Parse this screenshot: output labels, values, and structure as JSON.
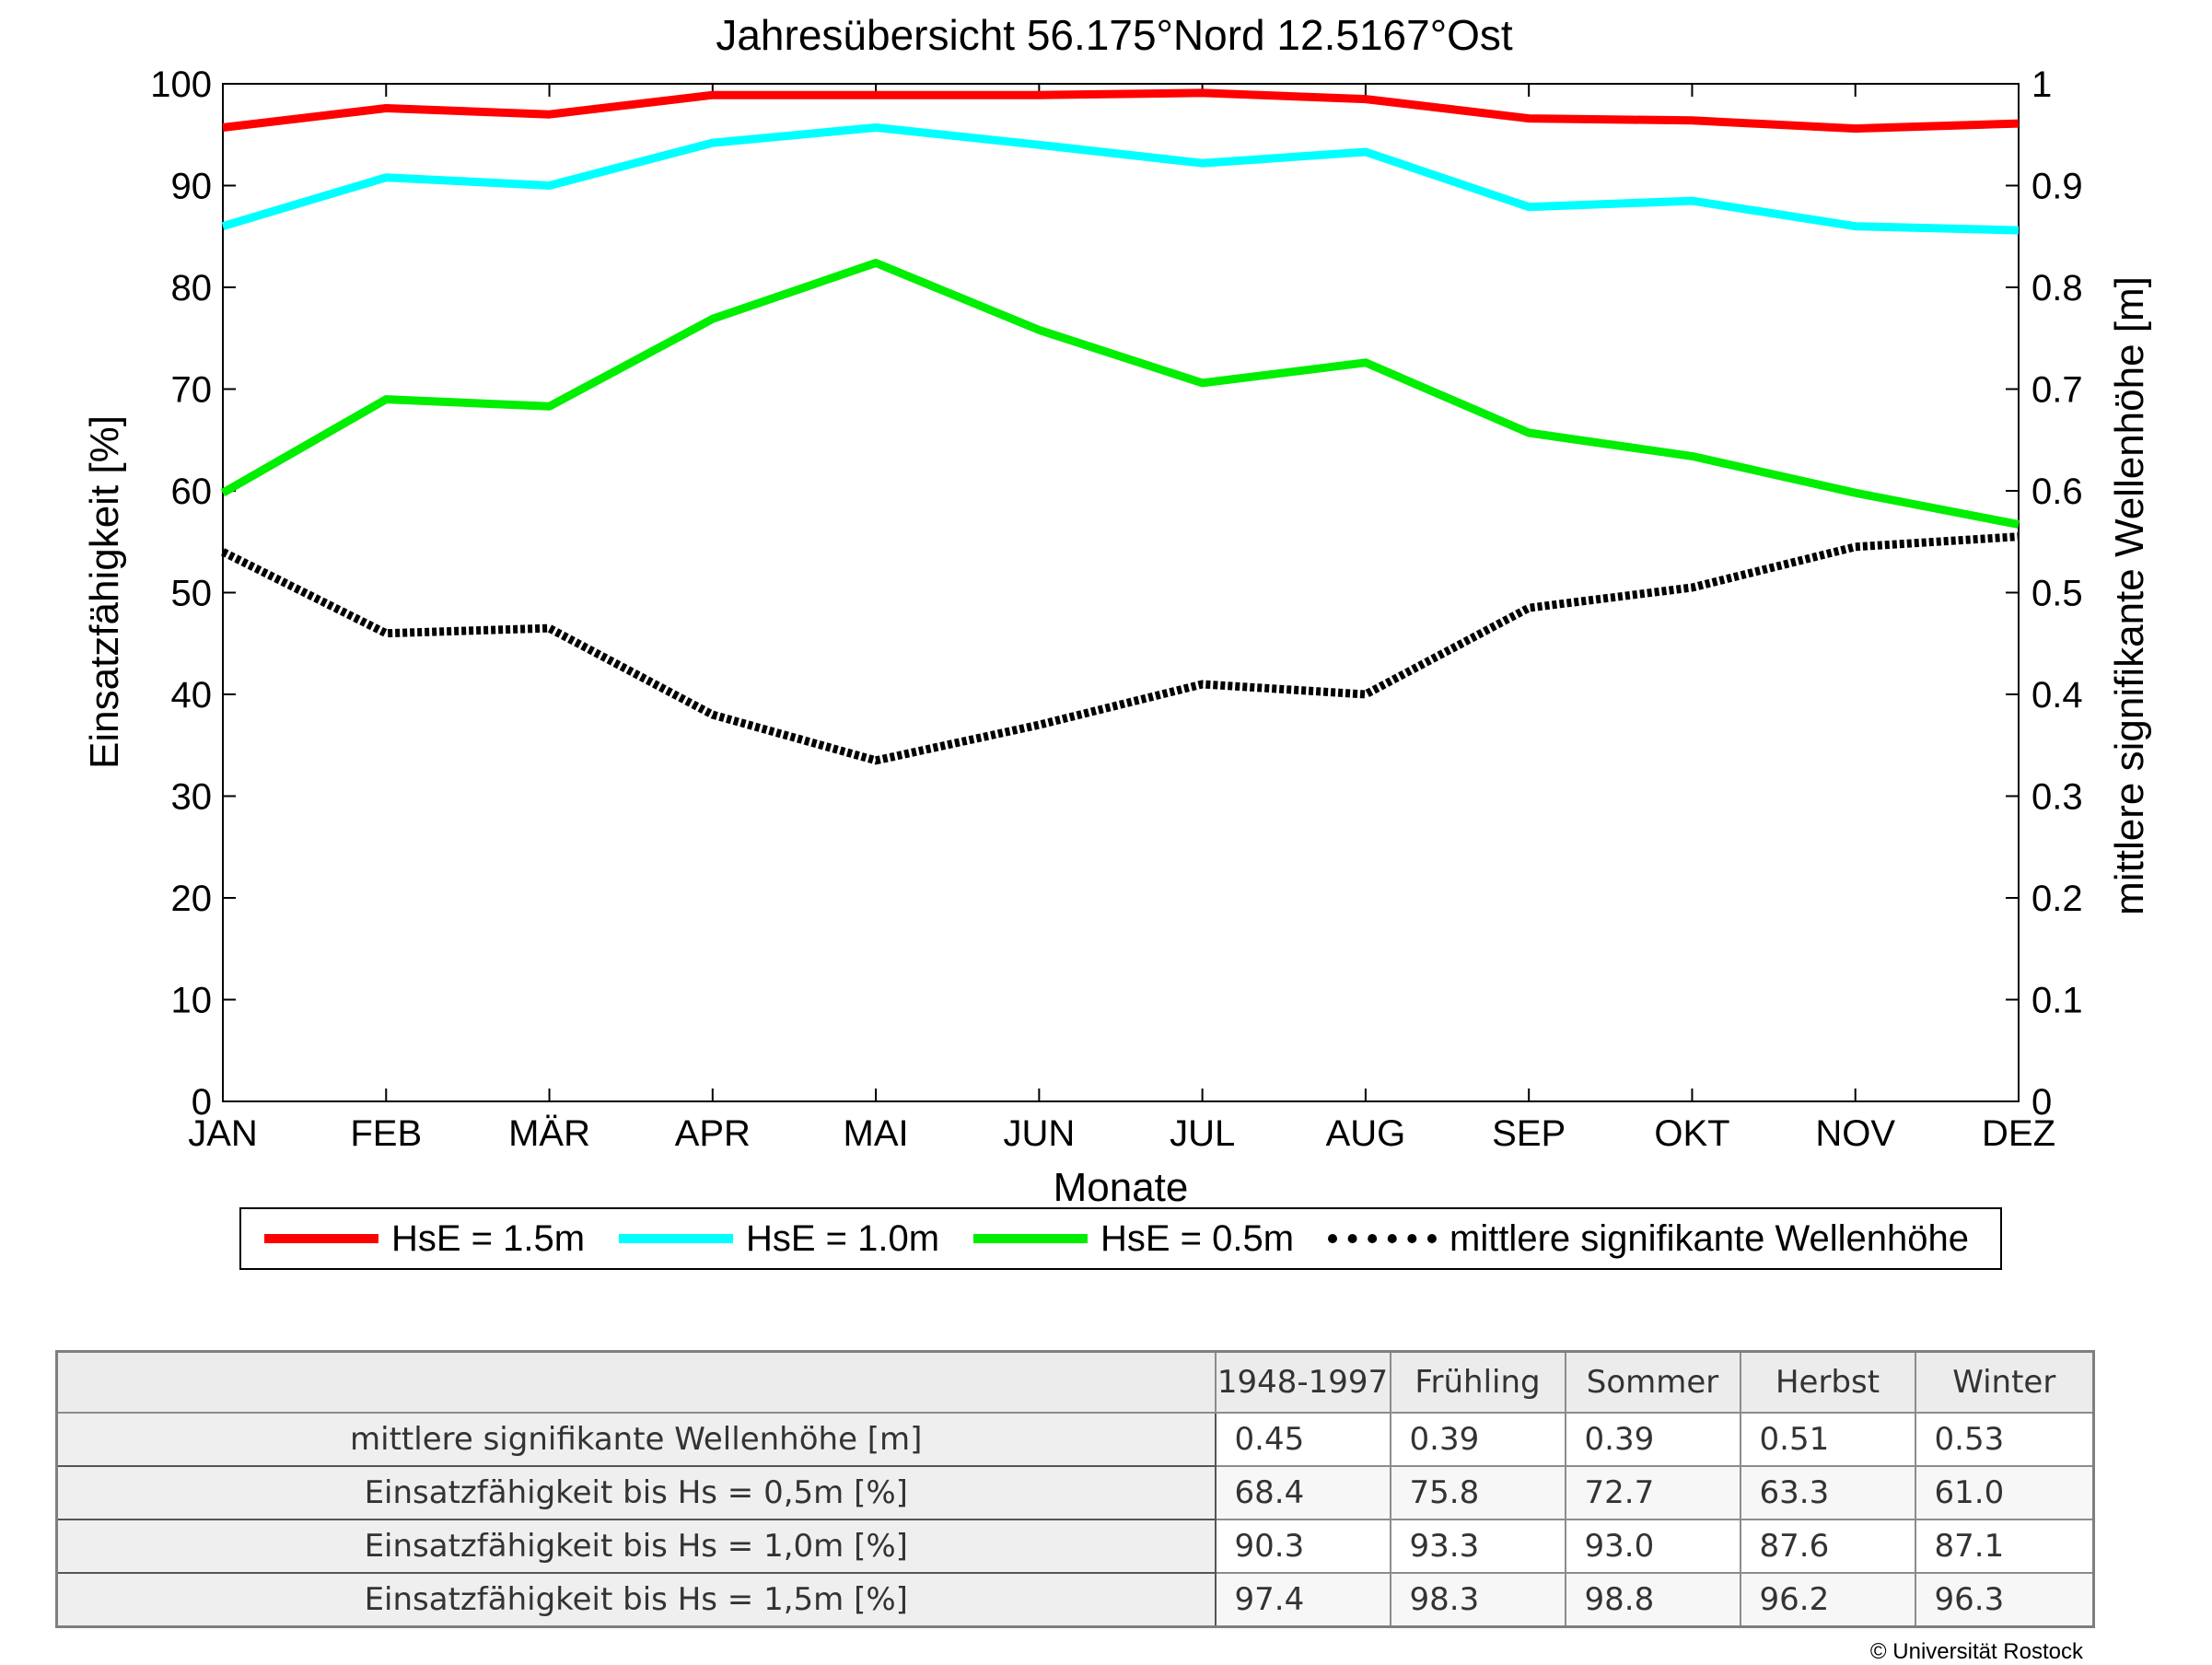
{
  "chart_data": {
    "type": "line",
    "title": "Jahresübersicht  56.175°Nord  12.5167°Ost",
    "xlabel": "Monate",
    "ylabel": "Einsatzfähigkeit [%]",
    "y2label": "mittlere signifikante Wellenhöhe [m]",
    "categories": [
      "JAN",
      "FEB",
      "MÄR",
      "APR",
      "MAI",
      "JUN",
      "JUL",
      "AUG",
      "SEP",
      "OKT",
      "NOV",
      "DEZ"
    ],
    "ylim": [
      0,
      100
    ],
    "y2lim": [
      0,
      1
    ],
    "yticks": [
      "0",
      "10",
      "20",
      "30",
      "40",
      "50",
      "60",
      "70",
      "80",
      "90",
      "100"
    ],
    "y2ticks": [
      "0",
      "0.1",
      "0.2",
      "0.3",
      "0.4",
      "0.5",
      "0.6",
      "0.7",
      "0.8",
      "0.9",
      "1"
    ],
    "grid": false,
    "legend_position": "bottom",
    "series": [
      {
        "name": "HsE = 1.5m",
        "color": "#ff0000",
        "axis": "left",
        "style": "solid",
        "values": [
          95.7,
          97.6,
          97.0,
          98.9,
          98.9,
          98.9,
          99.1,
          98.5,
          96.6,
          96.4,
          95.6,
          96.1
        ]
      },
      {
        "name": "HsE = 1.0m",
        "color": "#00ffff",
        "axis": "left",
        "style": "solid",
        "values": [
          86.0,
          90.8,
          90.0,
          94.2,
          95.7,
          94.0,
          92.2,
          93.3,
          87.9,
          88.5,
          86.0,
          85.6
        ]
      },
      {
        "name": "HsE = 0.5m",
        "color": "#00ee00",
        "axis": "left",
        "style": "solid",
        "values": [
          59.8,
          69.0,
          68.3,
          76.9,
          82.4,
          75.8,
          70.6,
          72.6,
          65.7,
          63.4,
          59.8,
          56.7
        ]
      },
      {
        "name": "mittlere signifikante Wellenhöhe",
        "color": "#000000",
        "axis": "right",
        "style": "dotted",
        "values": [
          0.54,
          0.46,
          0.465,
          0.38,
          0.335,
          0.37,
          0.41,
          0.4,
          0.485,
          0.505,
          0.545,
          0.555
        ]
      }
    ]
  },
  "table": {
    "headers": [
      "",
      "1948-1997",
      "Frühling",
      "Sommer",
      "Herbst",
      "Winter"
    ],
    "rows": [
      {
        "label": "mittlere signifikante Wellenhöhe [m]",
        "values": [
          "0.45",
          "0.39",
          "0.39",
          "0.51",
          "0.53"
        ]
      },
      {
        "label": "Einsatzfähigkeit bis Hs = 0,5m [%]",
        "values": [
          "68.4",
          "75.8",
          "72.7",
          "63.3",
          "61.0"
        ]
      },
      {
        "label": "Einsatzfähigkeit bis Hs = 1,0m [%]",
        "values": [
          "90.3",
          "93.3",
          "93.0",
          "87.6",
          "87.1"
        ]
      },
      {
        "label": "Einsatzfähigkeit bis Hs = 1,5m [%]",
        "values": [
          "97.4",
          "98.3",
          "98.8",
          "96.2",
          "96.3"
        ]
      }
    ]
  },
  "copyright": "© Universität Rostock"
}
